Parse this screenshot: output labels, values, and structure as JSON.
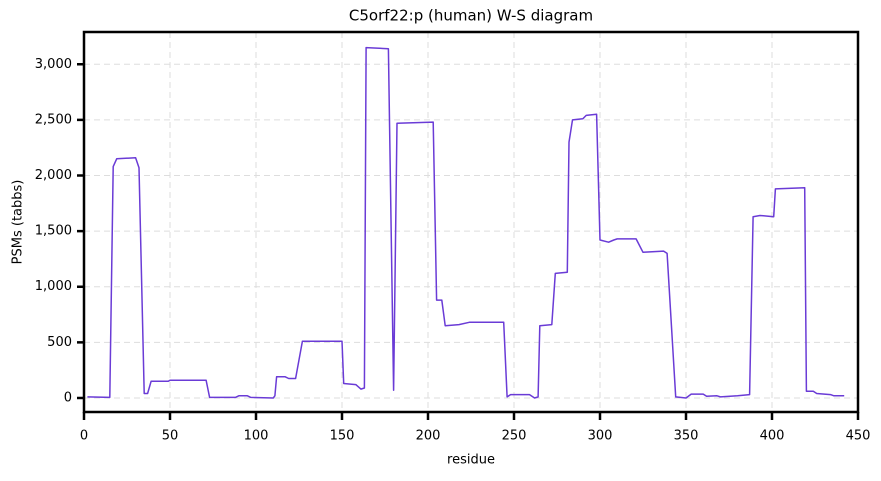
{
  "chart_data": {
    "type": "line",
    "title": "C5orf22:p (human) W-S diagram",
    "x_label": "residue",
    "y_label": "PSMs (tabbs)",
    "color": "#6a3bd6",
    "grid": true,
    "xlim": [
      0,
      450
    ],
    "ylim": [
      -126,
      3290
    ],
    "xticks": [
      0,
      50,
      100,
      150,
      200,
      250,
      300,
      350,
      400,
      450
    ],
    "yticks": [
      0,
      {
        "value": 500,
        "label": "500"
      },
      {
        "value": 1000,
        "label": "1,000"
      },
      {
        "value": 1500,
        "label": "1,500"
      },
      {
        "value": 2000,
        "label": "2,000"
      },
      {
        "value": 2500,
        "label": "2,500"
      },
      {
        "value": 3000,
        "label": "3,000"
      }
    ],
    "x": [
      2,
      15,
      17,
      19,
      30,
      32,
      35,
      37,
      39,
      49,
      50,
      71,
      73,
      88,
      90,
      95,
      97,
      110,
      111,
      112,
      117,
      119,
      123,
      127,
      150,
      151,
      158,
      161,
      163,
      164,
      177,
      180,
      182,
      203,
      205,
      208,
      210,
      218,
      224,
      244,
      246,
      248,
      259,
      262,
      264,
      265,
      272,
      274,
      281,
      282,
      284,
      290,
      292,
      298,
      300,
      305,
      308,
      310,
      321,
      325,
      337,
      339,
      344,
      350,
      353,
      360,
      362,
      368,
      370,
      380,
      387,
      389,
      393,
      401,
      402,
      419,
      420,
      424,
      426,
      434,
      436,
      442
    ],
    "values": [
      10,
      5,
      2080,
      2150,
      2160,
      2070,
      40,
      40,
      150,
      150,
      160,
      160,
      5,
      5,
      20,
      20,
      5,
      0,
      20,
      190,
      190,
      175,
      175,
      510,
      510,
      130,
      120,
      80,
      90,
      3150,
      3140,
      70,
      2470,
      2480,
      880,
      880,
      650,
      660,
      680,
      680,
      10,
      30,
      30,
      0,
      10,
      650,
      660,
      1120,
      1130,
      2300,
      2500,
      2510,
      2540,
      2550,
      1420,
      1400,
      1420,
      1430,
      1430,
      1310,
      1320,
      1300,
      10,
      0,
      35,
      35,
      15,
      20,
      10,
      20,
      30,
      1630,
      1640,
      1630,
      1880,
      1890,
      60,
      60,
      40,
      30,
      20,
      20
    ]
  }
}
